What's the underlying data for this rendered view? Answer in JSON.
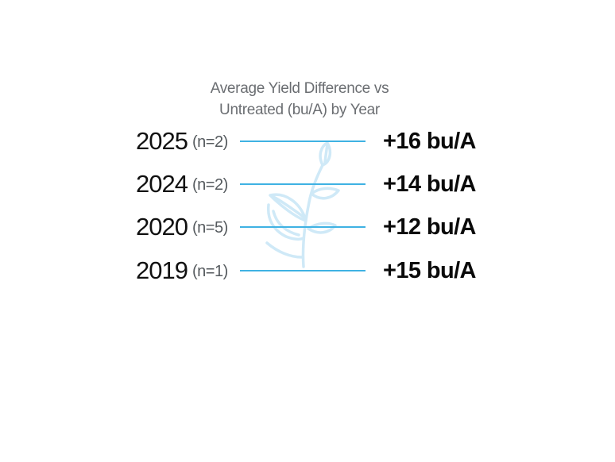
{
  "chart_data": {
    "type": "table",
    "title_lines": [
      "Average Yield Difference vs",
      "Untreated (bu/A) by Year"
    ],
    "rows": [
      {
        "year": "2025",
        "n": "(n=2)",
        "value": 16,
        "value_label": "+16 bu/A"
      },
      {
        "year": "2024",
        "n": "(n=2)",
        "value": 14,
        "value_label": "+14 bu/A"
      },
      {
        "year": "2020",
        "n": "(n=5)",
        "value": 12,
        "value_label": "+12 bu/A"
      },
      {
        "year": "2019",
        "n": "(n=1)",
        "value": 15,
        "value_label": "+15 bu/A"
      }
    ]
  },
  "colors": {
    "leader_line": "#3fb2e3",
    "watermark": "#cfe9f7",
    "title_text": "#6b6e72"
  },
  "icons": {
    "watermark": "plant-sprout-icon"
  }
}
